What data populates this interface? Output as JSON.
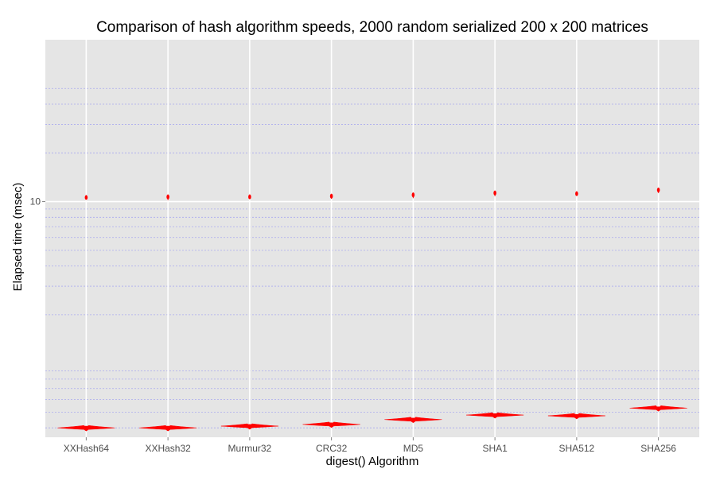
{
  "chart_data": {
    "type": "violin",
    "title": "Comparison of hash algorithm speeds, 2000 random serialized 200 x 200 matrices",
    "xlabel": "digest() Algorithm",
    "ylabel": "Elapsed time (msec)",
    "y_scale": "log10",
    "ylim": [
      0.35,
      100
    ],
    "y_major_ticks": [
      10
    ],
    "y_major_tick_labels": [
      "10"
    ],
    "y_minor_gridlines": [
      0.4,
      0.5,
      0.6,
      0.7,
      0.8,
      0.9,
      2,
      3,
      4,
      5,
      6,
      7,
      8,
      9,
      20,
      30,
      40,
      50
    ],
    "grid": true,
    "categories": [
      "XXHash64",
      "XXHash32",
      "Murmur32",
      "CRC32",
      "MD5",
      "SHA1",
      "SHA512",
      "SHA256"
    ],
    "main_cluster_ms": [
      0.4,
      0.4,
      0.41,
      0.42,
      0.45,
      0.48,
      0.475,
      0.53
    ],
    "main_cluster_max_ms": [
      0.41,
      0.41,
      0.42,
      0.43,
      0.46,
      0.49,
      0.485,
      0.54
    ],
    "outlier_cluster_ms": [
      10.6,
      10.7,
      10.7,
      10.8,
      11.0,
      11.3,
      11.2,
      11.8
    ],
    "outlier_cluster_min_ms": [
      10.5,
      10.2,
      10.6,
      10.4,
      10.5,
      10.8,
      11.0,
      11.3
    ],
    "colors": {
      "violin": "#ff0000",
      "panel_background": "#e5e5e5",
      "grid_major": "#ffffff",
      "grid_minor": "#aaaaee"
    }
  }
}
